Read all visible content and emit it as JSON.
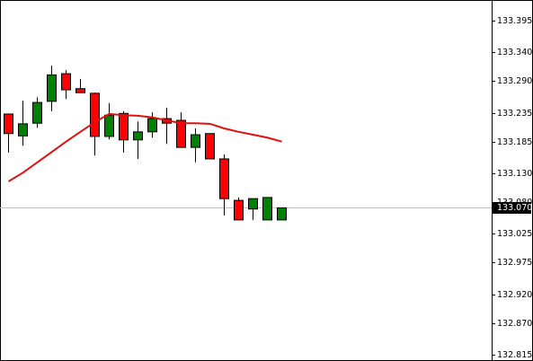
{
  "chart_data": {
    "type": "candlestick",
    "up_color": "#008000",
    "down_color": "#ff0000",
    "open": [
      133.233,
      133.195,
      133.217,
      133.255,
      133.303,
      133.277,
      133.269,
      133.194,
      133.234,
      133.188,
      133.202,
      133.225,
      133.222,
      133.175,
      133.199,
      133.155,
      133.083,
      133.068,
      133.049,
      133.049
    ],
    "high": [
      133.233,
      133.256,
      133.262,
      133.317,
      133.309,
      133.294,
      133.27,
      133.252,
      133.238,
      133.22,
      133.236,
      133.244,
      133.236,
      133.208,
      133.199,
      133.163,
      133.088,
      133.086,
      133.088,
      133.07
    ],
    "low": [
      133.166,
      133.178,
      133.209,
      133.238,
      133.259,
      133.27,
      133.161,
      133.189,
      133.166,
      133.155,
      133.192,
      133.181,
      133.175,
      133.149,
      133.155,
      133.057,
      133.049,
      133.049,
      133.049,
      133.049
    ],
    "close": [
      133.199,
      133.216,
      133.253,
      133.301,
      133.275,
      133.27,
      133.194,
      133.231,
      133.188,
      133.202,
      133.225,
      133.217,
      133.175,
      133.197,
      133.155,
      133.086,
      133.049,
      133.086,
      133.088,
      133.07
    ],
    "moving_average": {
      "color": "#e01010",
      "values": [
        133.116,
        133.131,
        133.149,
        133.167,
        133.185,
        133.202,
        133.219,
        133.233,
        133.231,
        133.23,
        133.227,
        133.222,
        133.217,
        133.217,
        133.216,
        133.208,
        133.202,
        133.197,
        133.192,
        133.185
      ]
    },
    "current_price": {
      "value": 133.07,
      "label": "133.070"
    },
    "ylim": [
      132.804,
      133.431
    ],
    "yticks": [
      133.395,
      {
        "value": 133.34,
        "label": "133.340"
      },
      {
        "value": 133.29,
        "label": "133.290"
      },
      133.235,
      133.185,
      {
        "value": 133.13,
        "label": "133.130"
      },
      {
        "value": 133.08,
        "label": "133.080"
      },
      133.025,
      132.975,
      {
        "value": 132.92,
        "label": "132.920"
      },
      {
        "value": 132.87,
        "label": "132.870"
      },
      132.815
    ]
  }
}
